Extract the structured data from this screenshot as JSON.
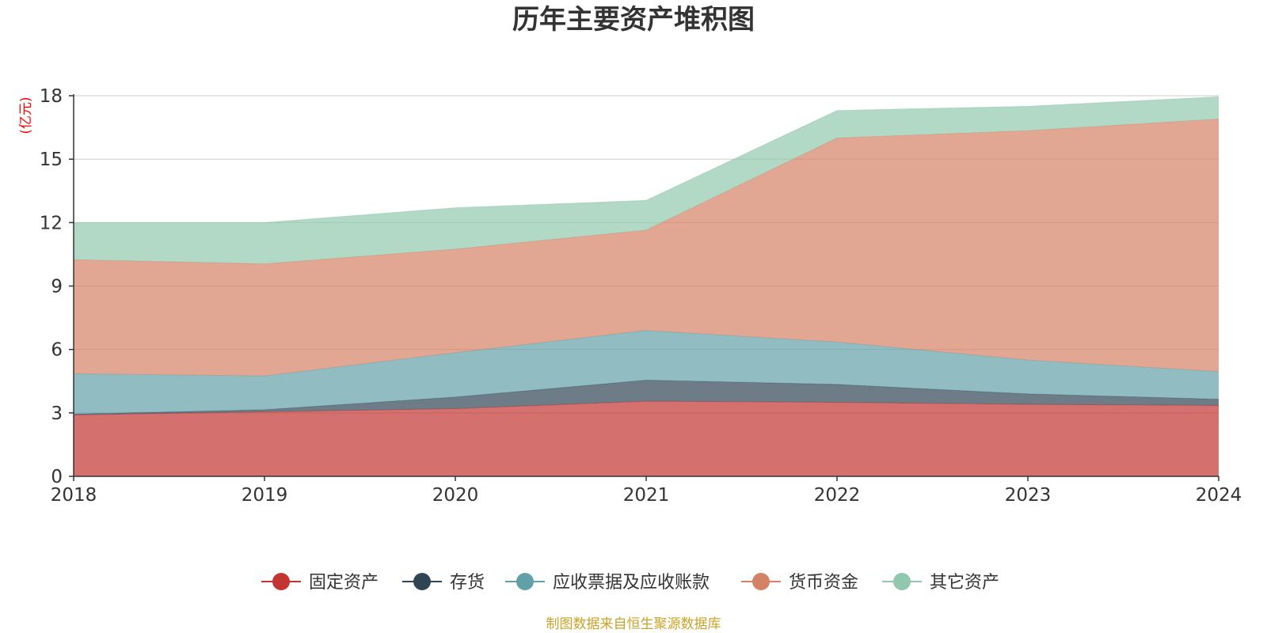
{
  "chart_data": {
    "type": "area",
    "stacked": true,
    "title": "历年主要资产堆积图",
    "y_unit": "(亿元)",
    "categories": [
      "2018",
      "2019",
      "2020",
      "2021",
      "2022",
      "2023",
      "2024"
    ],
    "ylim": [
      0,
      18
    ],
    "yticks": [
      "0",
      "3",
      "6",
      "9",
      "12",
      "15",
      "18"
    ],
    "grid": true,
    "legend_position": "bottom",
    "series": [
      {
        "name": "固定资产",
        "color": "#c23531",
        "values": [
          2.9,
          3.05,
          3.2,
          3.55,
          3.5,
          3.4,
          3.35
        ]
      },
      {
        "name": "存货",
        "color": "#2f4554",
        "values": [
          0.05,
          0.1,
          0.55,
          1.0,
          0.85,
          0.5,
          0.3
        ]
      },
      {
        "name": "应收票据及应收账款",
        "color": "#61a0a8",
        "values": [
          1.9,
          1.6,
          2.1,
          2.35,
          2.0,
          1.6,
          1.3
        ]
      },
      {
        "name": "货币资金",
        "color": "#d48265",
        "values": [
          5.4,
          5.3,
          4.9,
          4.75,
          9.65,
          10.85,
          11.95
        ]
      },
      {
        "name": "其它资产",
        "color": "#91c7ae",
        "values": [
          1.75,
          1.95,
          1.95,
          1.4,
          1.3,
          1.15,
          1.05
        ]
      }
    ],
    "source": "制图数据来自恒生聚源数据库",
    "unit_color": "#ff0000",
    "source_color": "#c9a227"
  }
}
